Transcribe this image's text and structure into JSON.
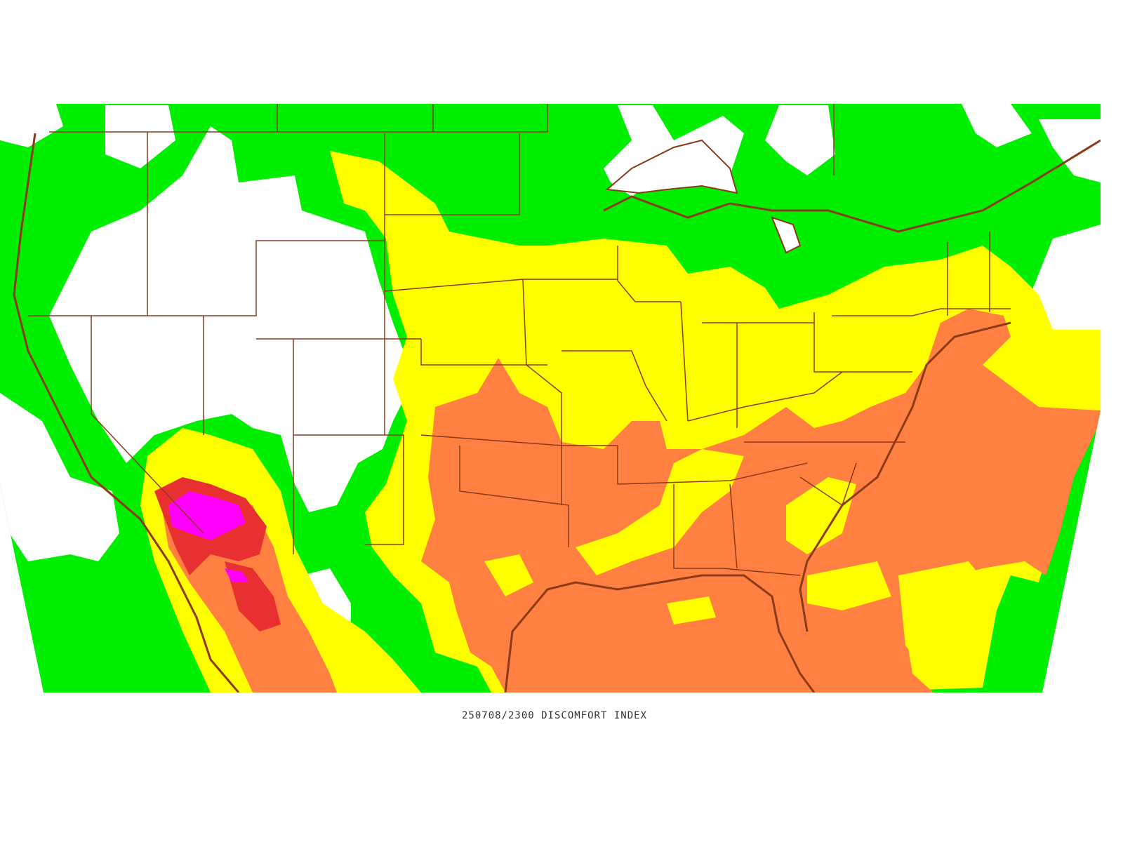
{
  "map": {
    "caption": "250708/2300 DISCOMFORT INDEX"
  }
}
